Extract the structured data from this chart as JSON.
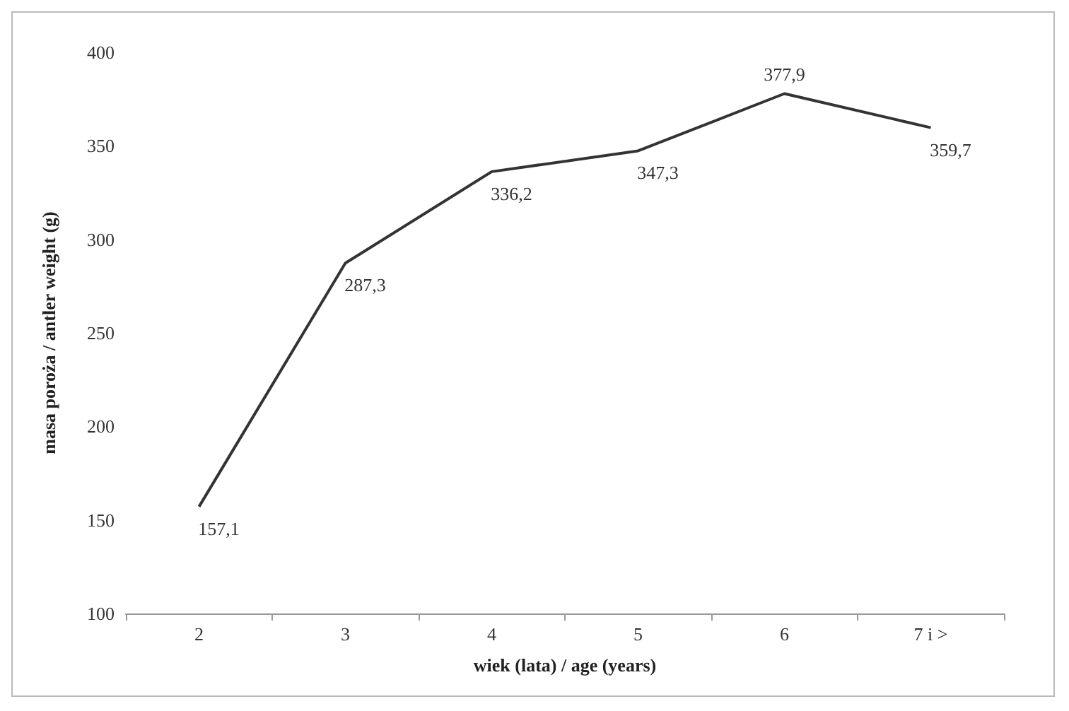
{
  "chart_data": {
    "type": "line",
    "xlabel": "wiek (lata) / age (years)",
    "ylabel": "masa poroża / antler weight (g)",
    "categories": [
      "2",
      "3",
      "4",
      "5",
      "6",
      "7 i >"
    ],
    "series": [
      {
        "color": "#333333",
        "values": [
          157.1,
          287.3,
          336.2,
          347.3,
          377.9,
          359.7
        ],
        "value_labels": [
          "157,1",
          "287,3",
          "336,2",
          "347,3",
          "377,9",
          "359,7"
        ]
      }
    ],
    "ylim": [
      100,
      400
    ],
    "yticks": [
      100,
      150,
      200,
      250,
      300,
      350,
      400
    ],
    "grid": false,
    "marker": "none",
    "line_style": "solid"
  }
}
